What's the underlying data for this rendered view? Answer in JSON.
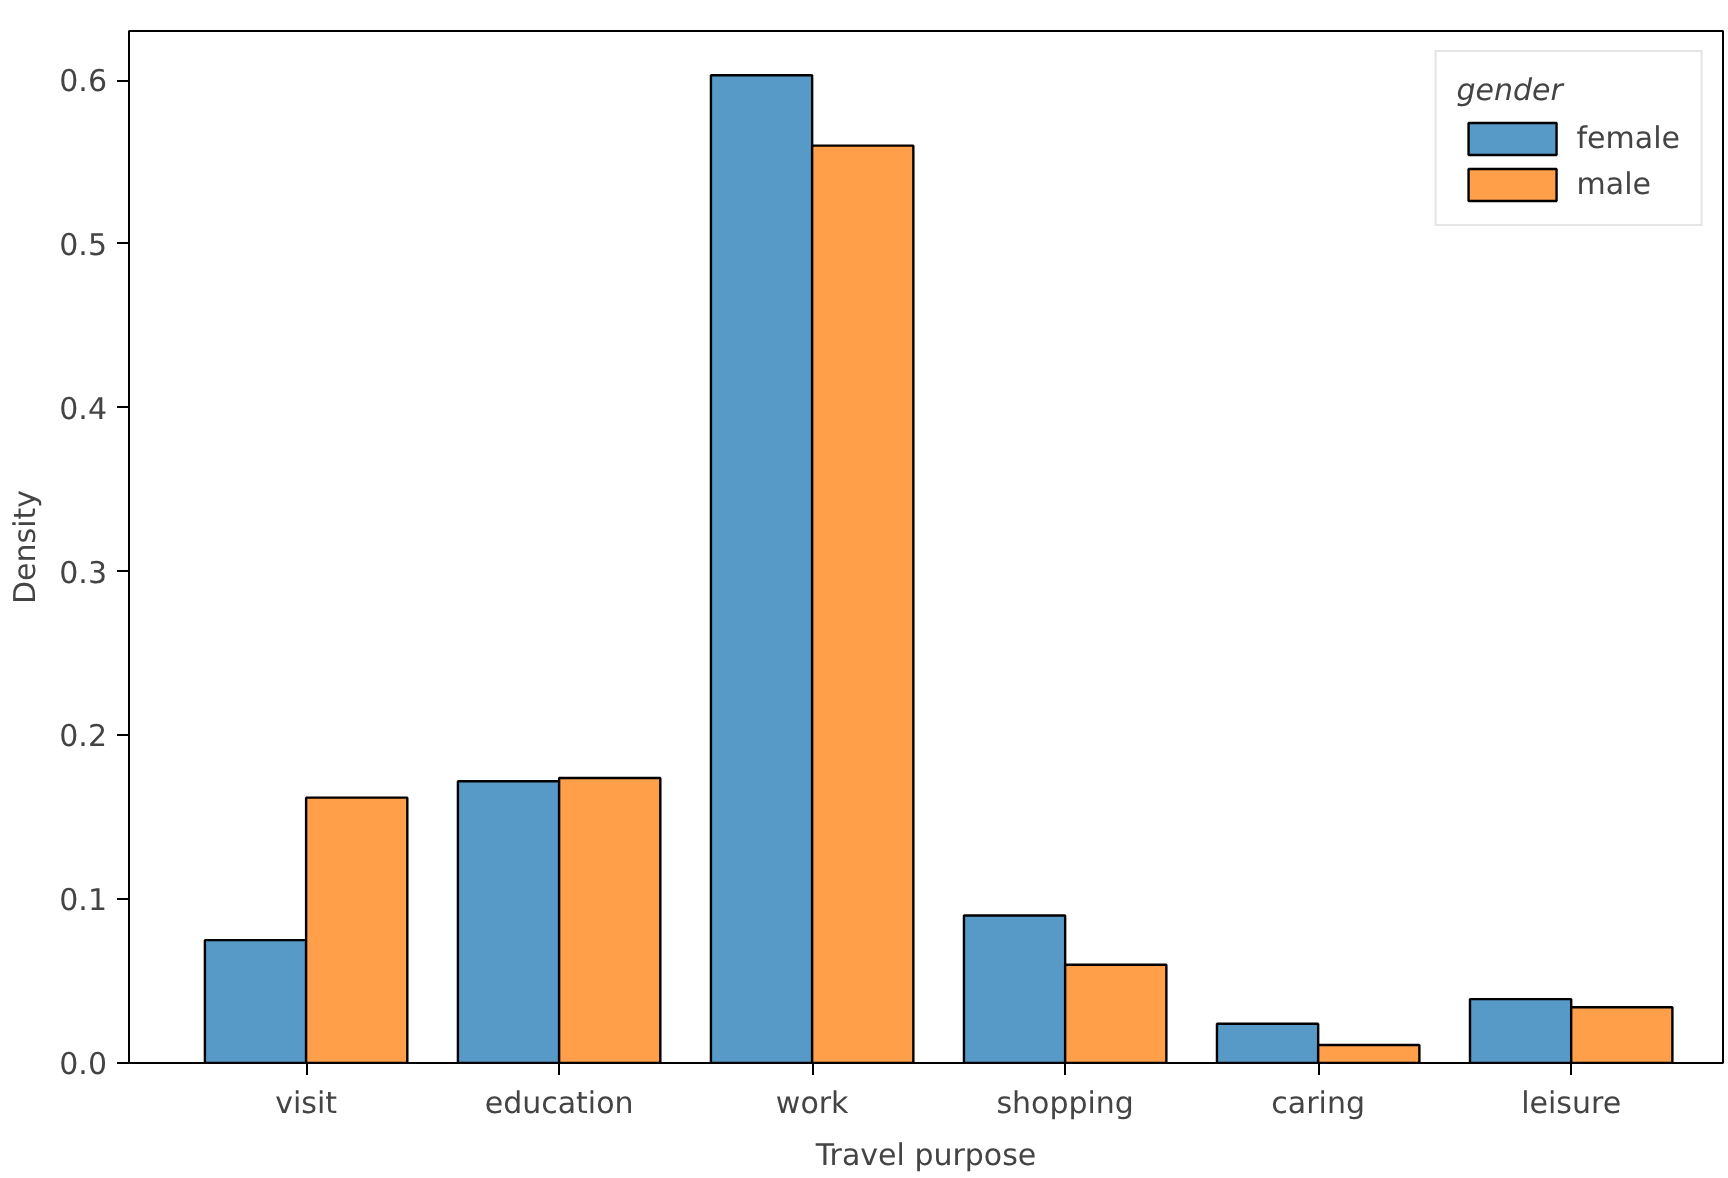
{
  "chart_data": {
    "type": "bar",
    "xlabel": "Travel purpose",
    "ylabel": "Density",
    "legend_title": "gender",
    "categories": [
      "visit",
      "education",
      "work",
      "shopping",
      "caring",
      "leisure"
    ],
    "series": [
      {
        "name": "female",
        "color": "#5799c7",
        "values": [
          0.075,
          0.172,
          0.603,
          0.09,
          0.024,
          0.039
        ]
      },
      {
        "name": "male",
        "color": "#ff9f4a",
        "values": [
          0.162,
          0.174,
          0.56,
          0.06,
          0.011,
          0.034
        ]
      }
    ],
    "ylim": [
      0,
      0.63
    ],
    "yticks": [
      {
        "value": 0,
        "label": "0.0"
      },
      0.1,
      0.2,
      0.3,
      0.4,
      0.5,
      0.6
    ],
    "grid": false,
    "legend": "top right"
  }
}
